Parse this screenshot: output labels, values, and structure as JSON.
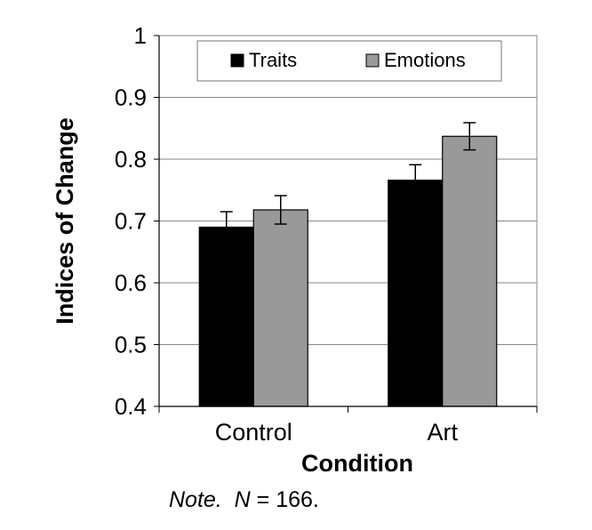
{
  "chart_data": {
    "type": "bar",
    "categories": [
      "Control",
      "Art"
    ],
    "series": [
      {
        "name": "Traits",
        "color": "#000000",
        "values": [
          0.69,
          0.766
        ],
        "error": [
          0.025,
          0.025
        ]
      },
      {
        "name": "Emotions",
        "color": "#999999",
        "values": [
          0.718,
          0.837
        ],
        "error": [
          0.023,
          0.022
        ]
      }
    ],
    "xlabel": "Condition",
    "ylabel": "Indices of Change",
    "ylim": [
      0.4,
      1
    ],
    "yticks": [
      "0.4",
      "0.5",
      "0.6",
      "0.7",
      "0.8",
      "0.9",
      "1"
    ],
    "grid": true,
    "legend_position": "top"
  },
  "note": {
    "prefix": "Note.",
    "n_symbol": "N",
    "rest": " = 166."
  }
}
